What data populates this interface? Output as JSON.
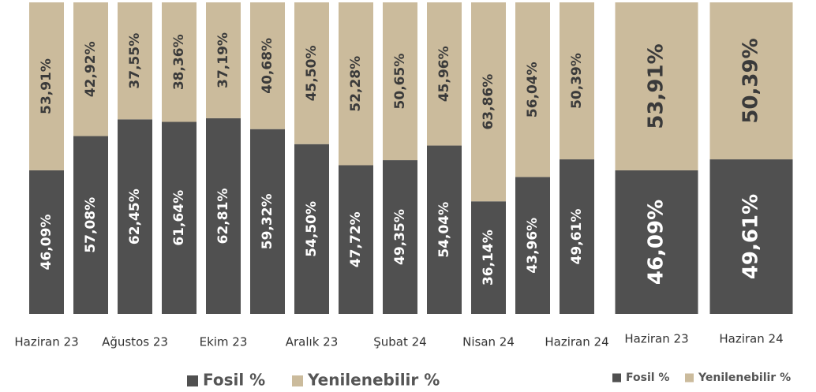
{
  "chart_data": [
    {
      "type": "bar",
      "stacked": true,
      "categories": [
        "Haziran 23",
        null,
        "Ağustos 23",
        null,
        "Ekim 23",
        null,
        "Aralık 23",
        null,
        "Şubat 24",
        null,
        "Nisan 24",
        null,
        "Haziran 24"
      ],
      "ylim": [
        0,
        100
      ],
      "legend": "bottom",
      "series": [
        {
          "name": "Fosil %",
          "color": "#505050",
          "values": [
            46.09,
            57.08,
            62.45,
            61.64,
            62.81,
            59.32,
            54.5,
            47.72,
            49.35,
            54.04,
            36.14,
            43.96,
            49.61
          ],
          "value_labels": [
            "46,09%",
            "57,08%",
            "62,45%",
            "61,64%",
            "62,81%",
            "59,32%",
            "54,50%",
            "47,72%",
            "49,35%",
            "54,04%",
            "36,14%",
            "43,96%",
            "49,61%"
          ]
        },
        {
          "name": "Yenilenebilir %",
          "color": "#cbbb9c",
          "values": [
            53.91,
            42.92,
            37.55,
            38.36,
            37.19,
            40.68,
            45.5,
            52.28,
            50.65,
            45.96,
            63.86,
            56.04,
            50.39
          ],
          "value_labels": [
            "53,91%",
            "42,92%",
            "37,55%",
            "38,36%",
            "37,19%",
            "40,68%",
            "45,50%",
            "52,28%",
            "50,65%",
            "45,96%",
            "63,86%",
            "56,04%",
            "50,39%"
          ]
        }
      ]
    },
    {
      "type": "bar",
      "stacked": true,
      "categories": [
        "Haziran 23",
        "Haziran 24"
      ],
      "ylim": [
        0,
        100
      ],
      "legend": "bottom",
      "series": [
        {
          "name": "Fosil %",
          "color": "#505050",
          "values": [
            46.09,
            49.61
          ],
          "value_labels": [
            "46,09%",
            "49,61%"
          ]
        },
        {
          "name": "Yenilenebilir %",
          "color": "#cbbb9c",
          "values": [
            53.91,
            50.39
          ],
          "value_labels": [
            "53,91%",
            "50,39%"
          ]
        }
      ]
    }
  ]
}
